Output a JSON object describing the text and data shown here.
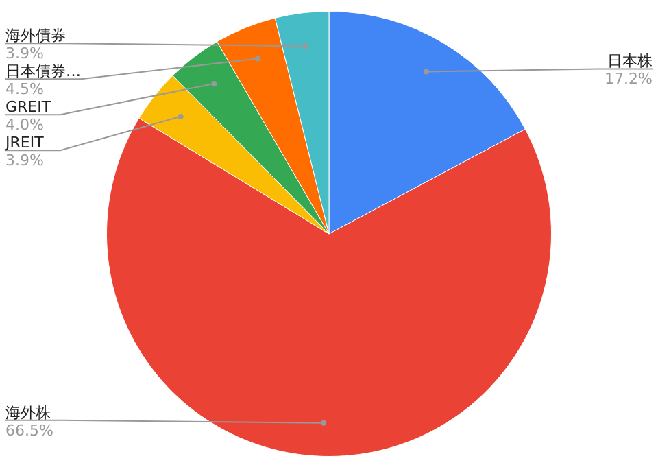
{
  "chart_data": {
    "type": "pie",
    "categories": [
      "日本株",
      "海外株",
      "JREIT",
      "GREIT",
      "日本債券…",
      "海外債券"
    ],
    "values": [
      17.2,
      66.5,
      3.9,
      4.0,
      4.5,
      3.9
    ],
    "colors": [
      "#4285f4",
      "#ea4335",
      "#fbbc04",
      "#34a853",
      "#ff6d01",
      "#46bdc6"
    ],
    "value_labels": [
      "17.2%",
      "66.5%",
      "3.9%",
      "4.0%",
      "4.5%",
      "3.9%"
    ],
    "legend": false
  }
}
